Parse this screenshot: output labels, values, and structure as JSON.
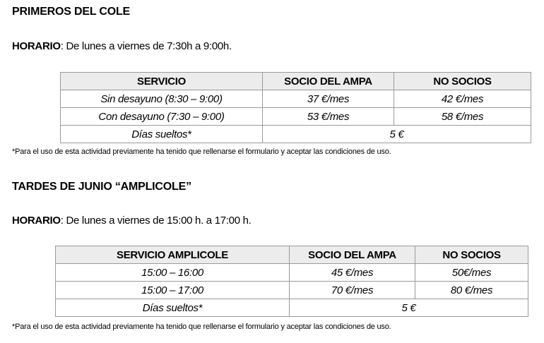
{
  "section1": {
    "title": "PRIMEROS DEL COLE",
    "schedule_label": "HORARIO",
    "schedule_text": ": De lunes a viernes de 7:30h a 9:00h.",
    "table": {
      "headers": [
        "SERVICIO",
        "SOCIO DEL AMPA",
        "NO SOCIOS"
      ],
      "rows": [
        [
          "Sin desayuno (8:30 – 9:00)",
          "37 €/mes",
          "42 €/mes"
        ],
        [
          "Con desayuno (7:30 – 9:00)",
          "53 €/mes",
          "58 €/mes"
        ]
      ],
      "last_row": {
        "label": "Días sueltos*",
        "price": "5 €"
      }
    },
    "footnote": "*Para el uso de esta actividad previamente ha tenido que rellenarse el formulario y aceptar las condiciones de uso."
  },
  "section2": {
    "title": "TARDES DE JUNIO “AMPLICOLE”",
    "schedule_label": "HORARIO",
    "schedule_text": ": De lunes a viernes de 15:00 h. a 17:00 h.",
    "table": {
      "headers": [
        "SERVICIO AMPLICOLE",
        "SOCIO DEL AMPA",
        "NO SOCIOS"
      ],
      "rows": [
        [
          "15:00 – 16:00",
          "45 €/mes",
          "50€/mes"
        ],
        [
          "15:00 – 17:00",
          "70 €/mes",
          "80 €/mes"
        ]
      ],
      "last_row": {
        "label": "Días sueltos*",
        "price": "5 €"
      }
    },
    "footnote": "*Para el uso de esta actividad previamente ha tenido que rellenarse el formulario y aceptar las condiciones de uso."
  }
}
